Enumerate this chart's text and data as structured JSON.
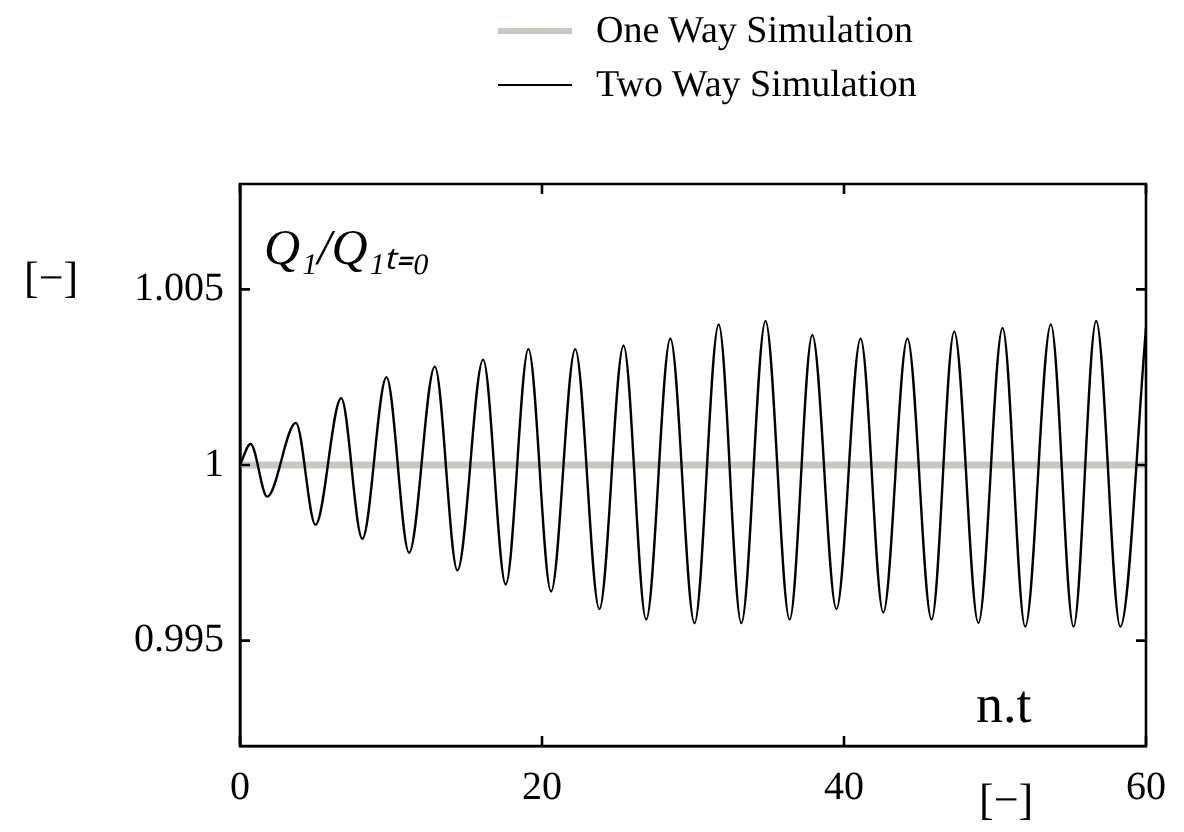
{
  "chart_data": {
    "type": "line",
    "xlabel": "n.t",
    "ylabel": "Q₁/Q₁ₜ₌₀",
    "annotations": [
      "[−]",
      "[−]"
    ],
    "xlim": [
      0,
      60
    ],
    "xticks": [
      0,
      20,
      40,
      60
    ],
    "ylim": [
      0.992,
      1.008
    ],
    "yticks": [
      0.995,
      1,
      1.005
    ],
    "legend": "top",
    "marker": "none",
    "line_style": "solid",
    "series": [
      {
        "name": "One Way Simulation",
        "color": "#c8c8c0",
        "x": [
          0,
          60
        ],
        "values": [
          1,
          1
        ]
      },
      {
        "name": "Two Way Simulation",
        "color": "#000000",
        "x": [
          0,
          0.7,
          1.8,
          3.7,
          5.0,
          6.7,
          8.1,
          9.7,
          11.2,
          12.9,
          14.4,
          16.1,
          17.6,
          19.1,
          20.6,
          22.2,
          23.8,
          25.4,
          26.9,
          28.5,
          30.1,
          31.7,
          33.2,
          34.8,
          36.4,
          37.9,
          39.5,
          41.1,
          42.6,
          44.2,
          45.8,
          47.3,
          48.9,
          50.5,
          52.0,
          53.7,
          55.2,
          56.7,
          58.3,
          60
        ],
        "values": [
          1.0,
          1.0006,
          0.9991,
          1.0012,
          0.9983,
          1.0019,
          0.9979,
          1.0025,
          0.9975,
          1.0028,
          0.997,
          1.003,
          0.9966,
          1.0033,
          0.9964,
          1.0033,
          0.9959,
          1.0034,
          0.9956,
          1.0036,
          0.9955,
          1.004,
          0.9955,
          1.0041,
          0.9956,
          1.0037,
          0.9959,
          1.0036,
          0.9958,
          1.0036,
          0.9956,
          1.0038,
          0.9955,
          1.0039,
          0.9954,
          1.004,
          0.9954,
          1.0041,
          0.9954,
          1.0039
        ]
      }
    ]
  }
}
